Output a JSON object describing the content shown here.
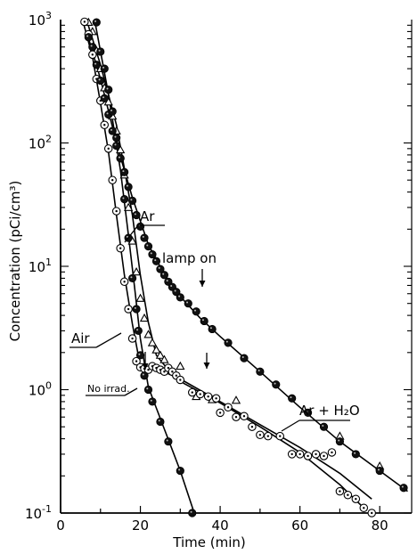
{
  "chart_data": {
    "type": "scatter",
    "xlabel": "Time (min)",
    "ylabel": "Concentration (pCi/cm³)",
    "yscale": "log",
    "xlim": [
      0,
      88
    ],
    "ylim": [
      0.1,
      1000
    ],
    "x_ticks": [
      0,
      20,
      40,
      60,
      80
    ],
    "y_ticks": [
      {
        "value": 0.1,
        "base": "10",
        "exp": "-1"
      },
      {
        "value": 1,
        "base": "10",
        "exp": "0"
      },
      {
        "value": 10,
        "base": "10",
        "exp": "1"
      },
      {
        "value": 100,
        "base": "10",
        "exp": "2"
      },
      {
        "value": 1000,
        "base": "10",
        "exp": "3"
      }
    ],
    "grid": false,
    "series": [
      {
        "name": "Ar",
        "marker": "triangle-open",
        "points": [
          [
            7,
            950
          ],
          [
            8,
            800
          ],
          [
            9,
            560
          ],
          [
            10,
            400
          ],
          [
            11,
            280
          ],
          [
            12,
            215
          ],
          [
            13,
            165
          ],
          [
            14,
            125
          ],
          [
            15,
            88
          ],
          [
            16,
            55
          ],
          [
            17,
            30
          ],
          [
            18,
            16
          ],
          [
            19,
            9
          ],
          [
            20,
            5.5
          ],
          [
            21,
            3.8
          ],
          [
            22,
            2.8
          ],
          [
            23,
            2.4
          ],
          [
            24,
            2.1
          ],
          [
            25,
            1.9
          ],
          [
            26,
            1.75
          ],
          [
            30,
            1.55
          ],
          [
            34,
            0.88
          ],
          [
            38,
            0.83
          ],
          [
            44,
            0.82
          ],
          [
            70,
            0.42
          ],
          [
            80,
            0.24
          ]
        ],
        "curve": [
          [
            6.5,
            1000
          ],
          [
            10,
            430
          ],
          [
            14,
            140
          ],
          [
            16,
            62
          ],
          [
            18,
            26
          ],
          [
            20,
            8.5
          ],
          [
            22,
            3.5
          ],
          [
            24,
            1.9
          ],
          [
            27,
            1.45
          ],
          [
            30,
            1.22
          ],
          [
            40,
            0.8
          ],
          [
            50,
            0.52
          ],
          [
            60,
            0.34
          ],
          [
            70,
            0.21
          ],
          [
            78,
            0.13
          ]
        ]
      },
      {
        "name": "Air",
        "marker": "circle-dot",
        "points": [
          [
            6,
            960
          ],
          [
            7,
            760
          ],
          [
            8,
            520
          ],
          [
            9,
            330
          ],
          [
            10,
            220
          ],
          [
            11,
            140
          ],
          [
            12,
            90
          ],
          [
            13,
            50
          ],
          [
            14,
            28
          ],
          [
            15,
            14
          ],
          [
            16,
            7.5
          ],
          [
            17,
            4.5
          ],
          [
            18,
            2.6
          ],
          [
            19,
            1.7
          ],
          [
            20,
            1.52
          ],
          [
            21,
            1.48
          ],
          [
            22,
            1.45
          ],
          [
            23,
            1.55
          ],
          [
            24,
            1.5
          ],
          [
            25,
            1.45
          ],
          [
            26,
            1.4
          ],
          [
            27,
            1.5
          ],
          [
            28,
            1.4
          ],
          [
            29,
            1.3
          ],
          [
            30,
            1.2
          ],
          [
            33,
            0.95
          ],
          [
            35,
            0.92
          ],
          [
            37,
            0.88
          ],
          [
            39,
            0.85
          ],
          [
            40,
            0.65
          ],
          [
            42,
            0.72
          ],
          [
            44,
            0.6
          ],
          [
            46,
            0.61
          ],
          [
            48,
            0.5
          ],
          [
            50,
            0.43
          ],
          [
            52,
            0.42
          ],
          [
            55,
            0.42
          ],
          [
            58,
            0.3
          ],
          [
            60,
            0.3
          ],
          [
            62,
            0.29
          ],
          [
            64,
            0.3
          ],
          [
            66,
            0.29
          ],
          [
            68,
            0.31
          ],
          [
            70,
            0.15
          ],
          [
            72,
            0.14
          ],
          [
            74,
            0.13
          ],
          [
            76,
            0.11
          ],
          [
            78,
            0.1
          ]
        ],
        "curve": [
          [
            5.5,
            1000
          ],
          [
            8,
            500
          ],
          [
            10,
            210
          ],
          [
            12,
            85
          ],
          [
            14,
            26
          ],
          [
            16,
            8.5
          ],
          [
            18,
            3.4
          ],
          [
            20,
            1.55
          ],
          [
            22,
            1.5
          ],
          [
            25,
            1.44
          ],
          [
            28,
            1.3
          ],
          [
            31,
            1.12
          ],
          [
            40,
            0.78
          ],
          [
            50,
            0.5
          ],
          [
            60,
            0.31
          ],
          [
            70,
            0.17
          ],
          [
            76,
            0.11
          ]
        ]
      },
      {
        "name": "Ar + H₂O",
        "marker": "circle-filled",
        "points": [
          [
            7,
            720
          ],
          [
            8,
            600
          ],
          [
            9,
            430
          ],
          [
            10,
            320
          ],
          [
            11,
            230
          ],
          [
            12,
            170
          ],
          [
            13,
            125
          ],
          [
            14,
            95
          ],
          [
            15,
            75
          ],
          [
            16,
            58
          ],
          [
            17,
            44
          ],
          [
            18,
            34
          ],
          [
            19,
            26
          ],
          [
            20,
            21
          ],
          [
            21,
            17
          ],
          [
            22,
            14.5
          ],
          [
            23,
            12.5
          ],
          [
            24,
            11
          ],
          [
            25,
            9.5
          ],
          [
            26,
            8.5
          ],
          [
            27,
            7.5
          ],
          [
            28,
            6.8
          ],
          [
            29,
            6.2
          ],
          [
            30,
            5.6
          ],
          [
            32,
            5
          ],
          [
            34,
            4.3
          ],
          [
            36,
            3.6
          ],
          [
            38,
            3.1
          ],
          [
            42,
            2.4
          ],
          [
            46,
            1.8
          ],
          [
            50,
            1.4
          ],
          [
            54,
            1.1
          ],
          [
            58,
            0.85
          ],
          [
            62,
            0.65
          ],
          [
            66,
            0.5
          ],
          [
            70,
            0.38
          ],
          [
            74,
            0.3
          ],
          [
            80,
            0.22
          ],
          [
            86,
            0.16
          ]
        ],
        "curve": [
          [
            6.5,
            800
          ],
          [
            10,
            330
          ],
          [
            14,
            100
          ],
          [
            18,
            36
          ],
          [
            22,
            15
          ],
          [
            26,
            8.6
          ],
          [
            30,
            5.7
          ],
          [
            35,
            3.8
          ],
          [
            40,
            2.7
          ],
          [
            50,
            1.4
          ],
          [
            60,
            0.72
          ],
          [
            70,
            0.38
          ],
          [
            80,
            0.22
          ],
          [
            87,
            0.15
          ]
        ]
      },
      {
        "name": "No irrad.",
        "marker": "circle-filled",
        "points": [
          [
            9,
            950
          ],
          [
            10,
            550
          ],
          [
            11,
            400
          ],
          [
            12,
            270
          ],
          [
            13,
            180
          ],
          [
            14,
            110
          ],
          [
            15,
            75
          ],
          [
            16,
            35
          ],
          [
            17,
            17
          ],
          [
            18,
            8
          ],
          [
            19,
            4.5
          ],
          [
            19.5,
            3
          ],
          [
            20,
            1.9
          ],
          [
            21,
            1.3
          ],
          [
            22,
            1.0
          ],
          [
            23,
            0.8
          ],
          [
            25,
            0.55
          ],
          [
            27,
            0.38
          ],
          [
            30,
            0.22
          ],
          [
            33,
            0.1
          ]
        ],
        "curve": [
          [
            8.5,
            1000
          ],
          [
            12,
            250
          ],
          [
            15,
            60
          ],
          [
            17,
            18
          ],
          [
            18.5,
            7
          ],
          [
            20,
            2.6
          ],
          [
            22,
            1.05
          ],
          [
            26,
            0.48
          ],
          [
            30,
            0.22
          ],
          [
            33.5,
            0.1
          ]
        ]
      }
    ],
    "annotations": {
      "ar": "Ar",
      "air": "Air",
      "ar_h2o": "Ar + H₂O",
      "no_irrad": "No irrad.",
      "lamp_on": "lamp on"
    }
  }
}
